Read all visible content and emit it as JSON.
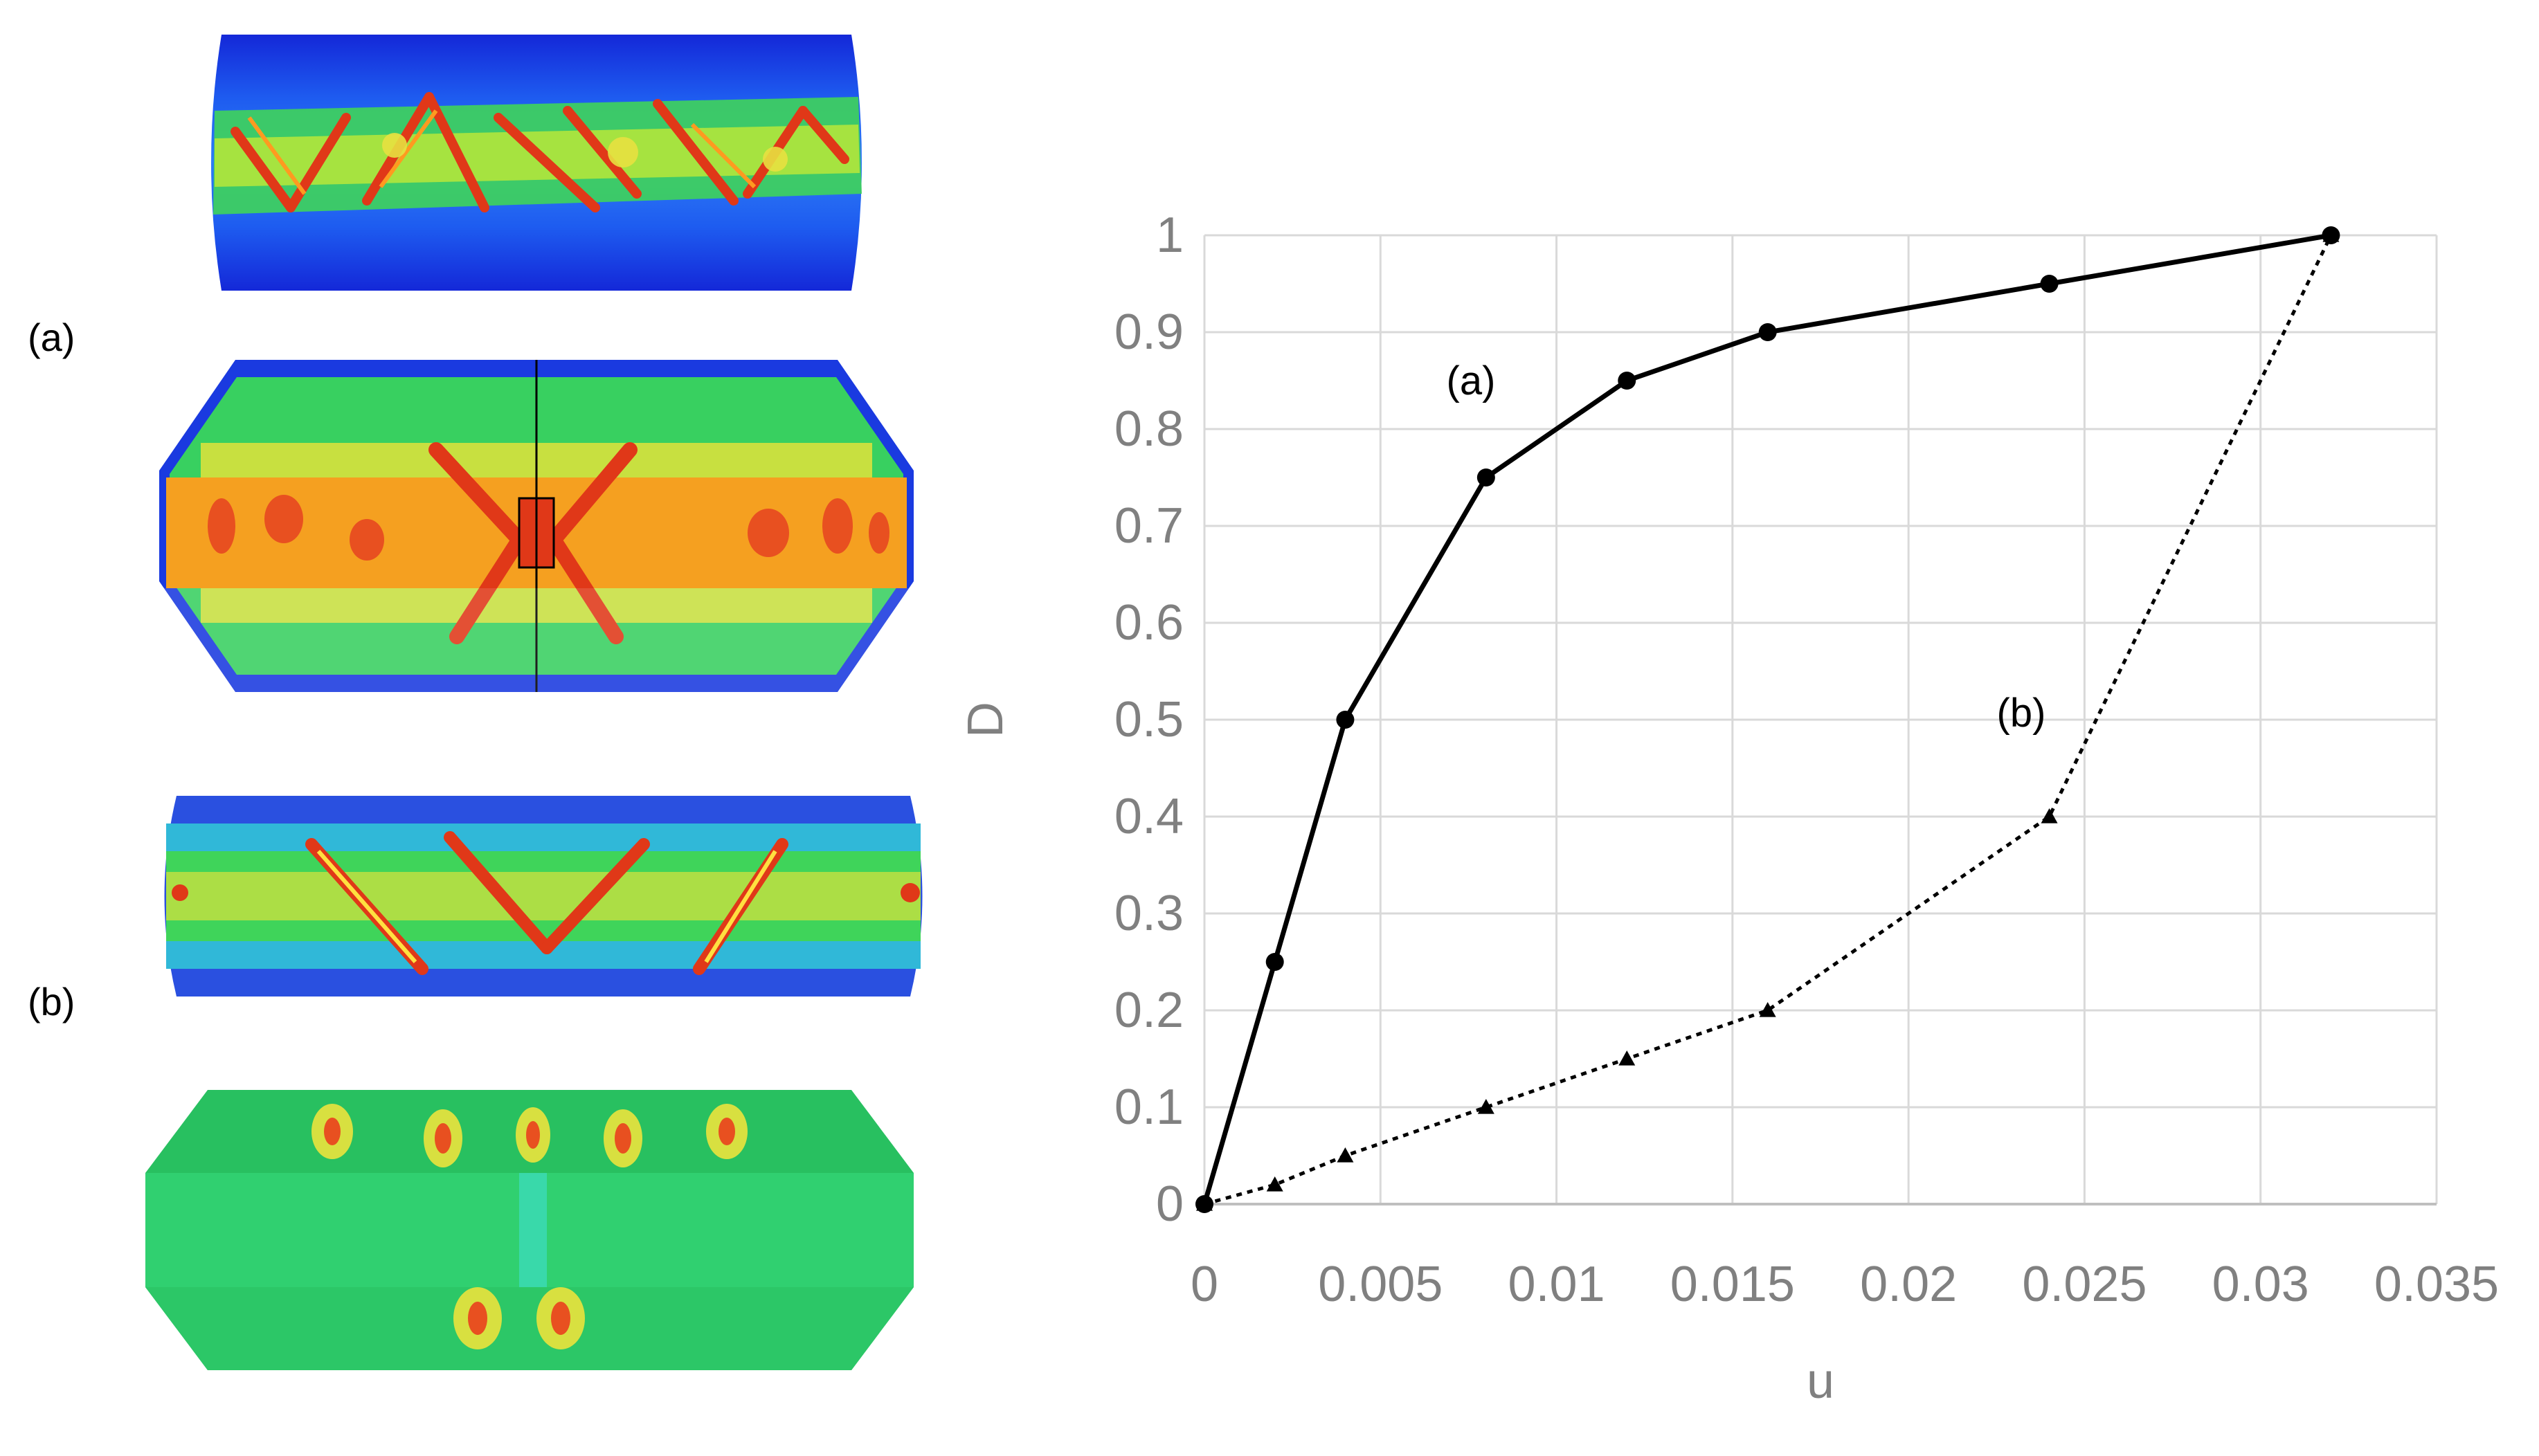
{
  "figure": {
    "panel_labels": [
      "(a)",
      "(b)"
    ]
  },
  "chart_data": {
    "type": "line",
    "xlabel": "u",
    "ylabel": "D",
    "xlim": [
      0,
      0.035
    ],
    "ylim": [
      0,
      1
    ],
    "x_ticks": [
      "0",
      "0.005",
      "0.01",
      "0.015",
      "0.02",
      "0.025",
      "0.03",
      "0.035"
    ],
    "y_ticks": [
      "0",
      "0.1",
      "0.2",
      "0.3",
      "0.4",
      "0.5",
      "0.6",
      "0.7",
      "0.8",
      "0.9",
      "1"
    ],
    "grid": true,
    "series": [
      {
        "name": "(a)",
        "style": "solid",
        "marker": "circle",
        "color": "#000000",
        "x": [
          0,
          0.002,
          0.004,
          0.008,
          0.012,
          0.016,
          0.024,
          0.032
        ],
        "y": [
          0,
          0.25,
          0.5,
          0.75,
          0.85,
          0.9,
          0.95,
          1.0
        ]
      },
      {
        "name": "(b)",
        "style": "dotted",
        "marker": "triangle",
        "color": "#000000",
        "x": [
          0,
          0.002,
          0.004,
          0.008,
          0.012,
          0.016,
          0.024,
          0.032
        ],
        "y": [
          0,
          0.02,
          0.05,
          0.1,
          0.15,
          0.2,
          0.4,
          1.0
        ]
      }
    ]
  }
}
